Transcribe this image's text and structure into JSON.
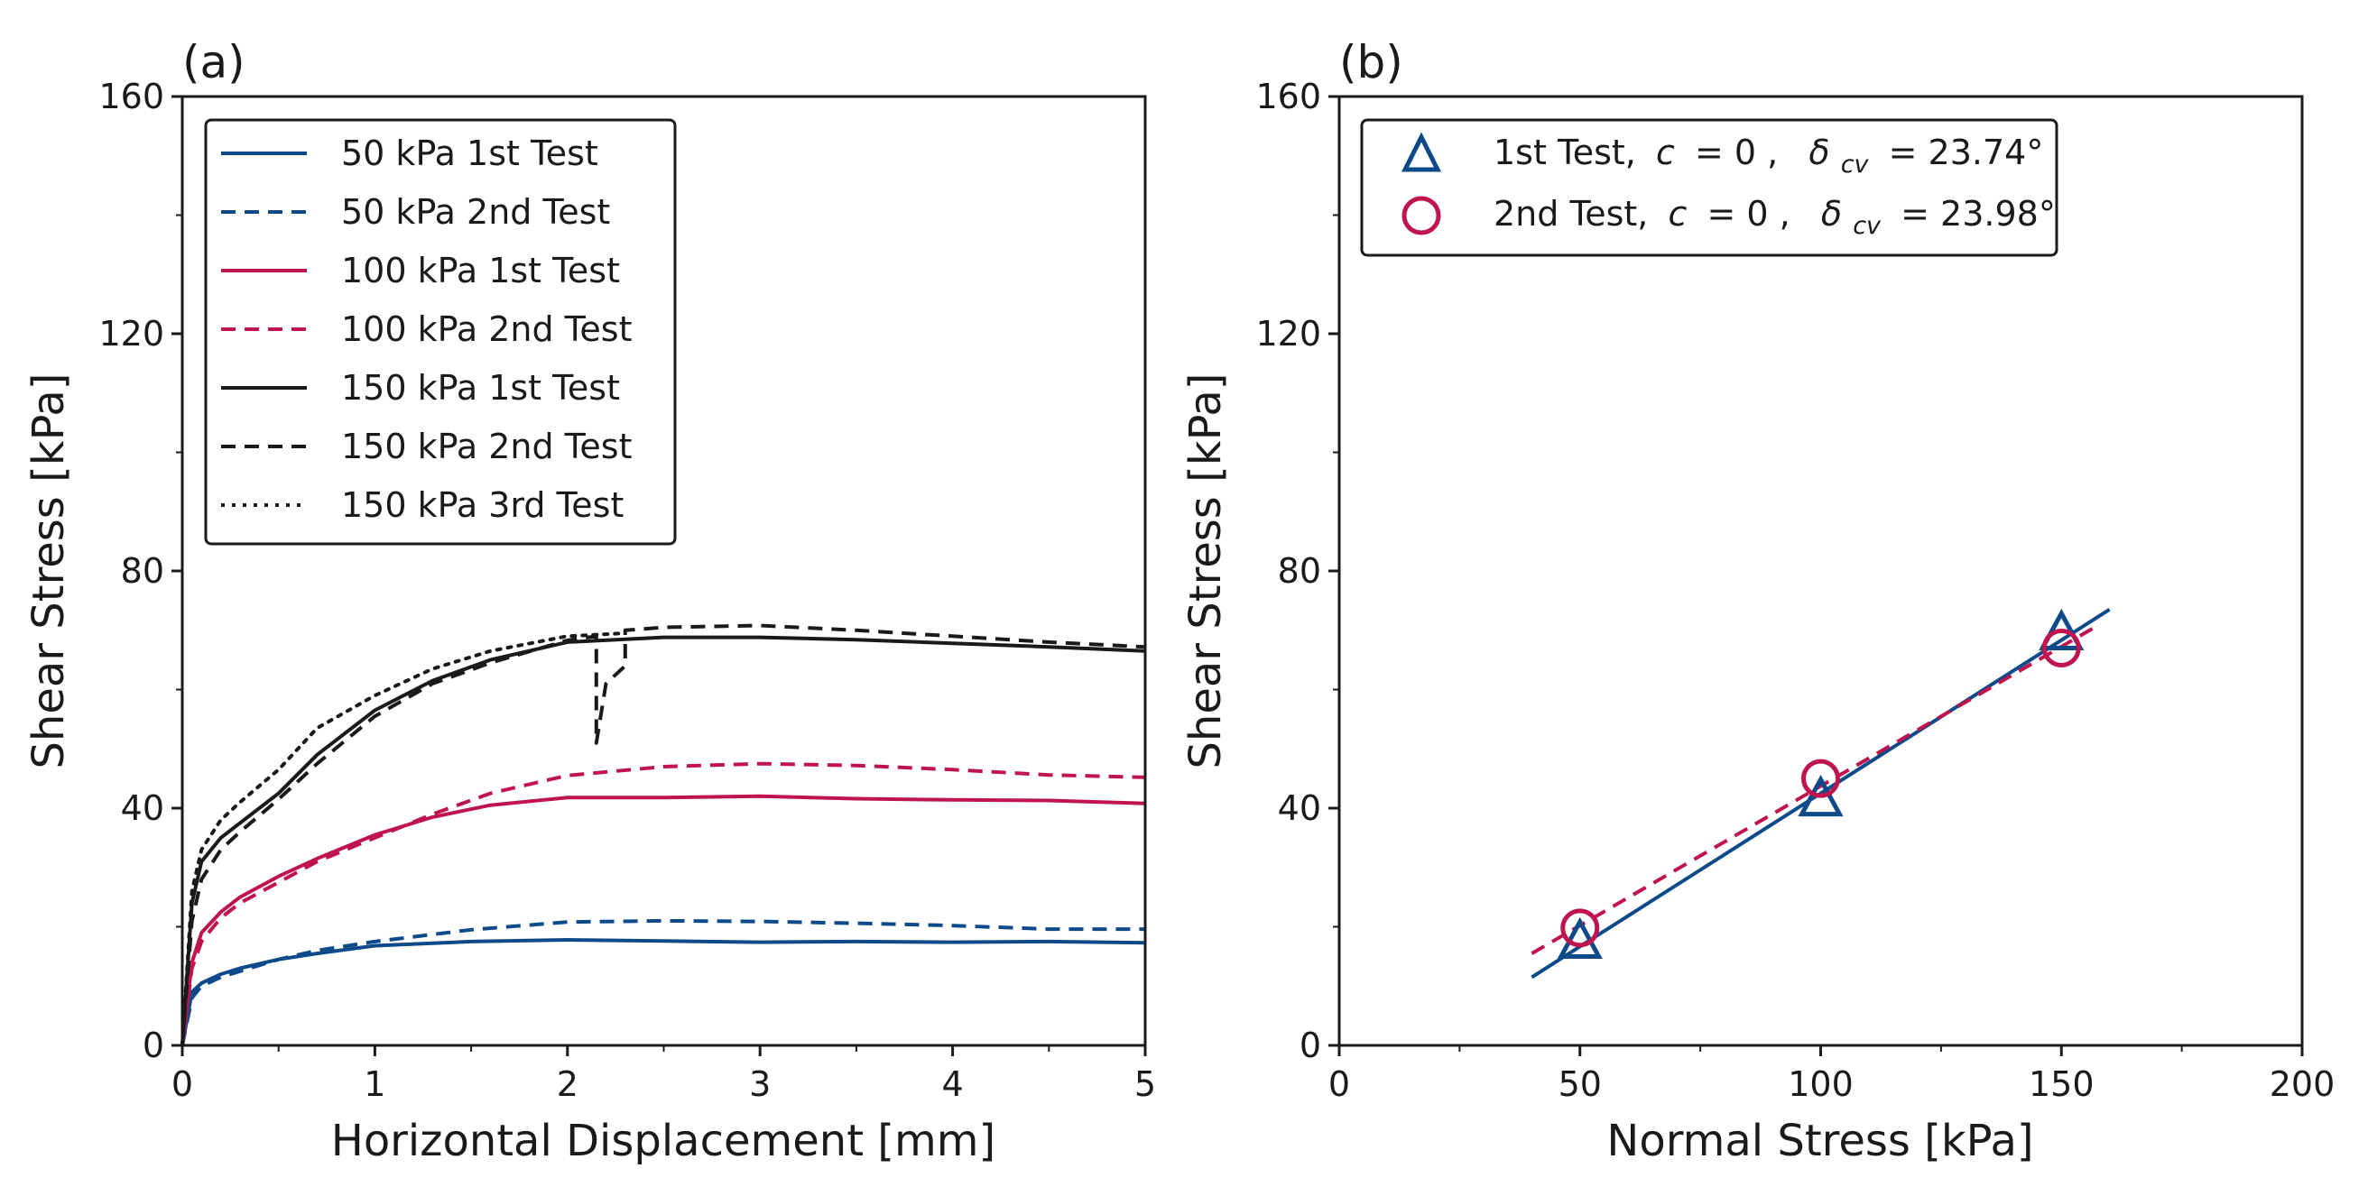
{
  "colors": {
    "blue": "#0d4a8a",
    "crimson": "#c0144f",
    "black": "#1a1a1a"
  },
  "chart_data": [
    {
      "panel_label": "(a)",
      "type": "line",
      "title": "",
      "xlabel": "Horizontal Displacement [mm]",
      "ylabel": "Shear Stress [kPa]",
      "xlim": [
        0,
        5
      ],
      "ylim": [
        0,
        160
      ],
      "xticks": [
        "0",
        "1",
        "2",
        "3",
        "4",
        "5"
      ],
      "yticks": [
        "0",
        "40",
        "80",
        "120",
        "160"
      ],
      "grid": false,
      "legend_position": "top-left",
      "series": [
        {
          "name": "50 kPa 1st Test",
          "color": "blue",
          "style": "solid",
          "x": [
            0,
            0.05,
            0.1,
            0.2,
            0.3,
            0.5,
            0.7,
            1.0,
            1.5,
            2.0,
            2.5,
            3.0,
            3.5,
            4.0,
            4.5,
            5.0
          ],
          "y": [
            0,
            9,
            10.5,
            12,
            13,
            14.5,
            15.5,
            16.8,
            17.5,
            17.8,
            17.6,
            17.4,
            17.5,
            17.4,
            17.5,
            17.3
          ]
        },
        {
          "name": "50 kPa 2nd Test",
          "color": "blue",
          "style": "dashed",
          "x": [
            0,
            0.05,
            0.1,
            0.2,
            0.3,
            0.5,
            0.7,
            1.0,
            1.5,
            2.0,
            2.5,
            3.0,
            3.5,
            4.0,
            4.5,
            5.0
          ],
          "y": [
            0,
            8,
            10,
            11.5,
            12.5,
            14.5,
            16,
            17.5,
            19.5,
            20.8,
            21,
            20.9,
            20.6,
            20.2,
            19.6,
            19.6
          ]
        },
        {
          "name": "100 kPa 1st Test",
          "color": "crimson",
          "style": "solid",
          "x": [
            0,
            0.05,
            0.1,
            0.2,
            0.3,
            0.5,
            0.7,
            1.0,
            1.3,
            1.6,
            2.0,
            2.5,
            3.0,
            3.5,
            4.0,
            4.5,
            5.0
          ],
          "y": [
            0,
            14,
            19,
            22.5,
            25,
            28.5,
            31.5,
            35.5,
            38.5,
            40.5,
            41.8,
            41.8,
            42,
            41.6,
            41.4,
            41.3,
            40.8
          ]
        },
        {
          "name": "100 kPa 2nd Test",
          "color": "crimson",
          "style": "dashed",
          "x": [
            0,
            0.05,
            0.1,
            0.2,
            0.3,
            0.5,
            0.7,
            1.0,
            1.3,
            1.6,
            2.0,
            2.5,
            3.0,
            3.5,
            4.0,
            4.5,
            5.0
          ],
          "y": [
            0,
            13,
            17.5,
            21.5,
            24,
            27.5,
            31,
            35,
            39,
            42.5,
            45.5,
            47,
            47.5,
            47.2,
            46.5,
            45.6,
            45.2
          ]
        },
        {
          "name": "150 kPa 1st Test",
          "color": "black",
          "style": "solid",
          "x": [
            0,
            0.05,
            0.1,
            0.2,
            0.3,
            0.5,
            0.7,
            1.0,
            1.3,
            1.6,
            2.0,
            2.5,
            3.0,
            3.5,
            4.0,
            4.5,
            5.0
          ],
          "y": [
            0,
            24,
            31,
            35,
            37.5,
            42.5,
            49,
            56.5,
            61.5,
            65,
            68,
            68.8,
            68.8,
            68.4,
            67.8,
            67.2,
            66.5
          ]
        },
        {
          "name": "150 kPa 2nd Test",
          "color": "black",
          "style": "dashed",
          "x": [
            0,
            0.05,
            0.1,
            0.2,
            0.3,
            0.5,
            0.7,
            1.0,
            1.3,
            1.6,
            2.0,
            2.15,
            2.15,
            2.2,
            2.3,
            2.3,
            2.5,
            3.0,
            3.5,
            4.0,
            4.5,
            5.0
          ],
          "y": [
            0,
            21,
            28,
            33,
            36,
            41.5,
            47.5,
            55.5,
            61,
            64.5,
            68.3,
            69,
            51,
            61,
            64,
            70,
            70.5,
            70.8,
            70,
            69,
            68,
            67.2
          ]
        },
        {
          "name": "150 kPa 3rd Test",
          "color": "black",
          "style": "dotted",
          "x": [
            0,
            0.05,
            0.1,
            0.2,
            0.3,
            0.5,
            0.7,
            1.0,
            1.3,
            1.6,
            2.0,
            2.3
          ],
          "y": [
            0,
            26,
            33,
            38,
            41,
            46.5,
            53.5,
            59,
            63.5,
            66.5,
            69,
            69.5
          ]
        }
      ]
    },
    {
      "panel_label": "(b)",
      "type": "scatter",
      "title": "",
      "xlabel": "Normal Stress [kPa]",
      "ylabel": "Shear Stress [kPa]",
      "xlim": [
        0,
        200
      ],
      "ylim": [
        0,
        160
      ],
      "xticks": [
        "0",
        "50",
        "100",
        "150",
        "200"
      ],
      "yticks": [
        "0",
        "40",
        "80",
        "120",
        "160"
      ],
      "grid": false,
      "legend_position": "top-left",
      "series": [
        {
          "name": "1st Test",
          "legend_prefix": "1st Test,",
          "c_value": "0",
          "delta_value": "= 23.74°",
          "color": "blue",
          "marker": "triangle",
          "x": [
            50,
            100,
            150
          ],
          "y": [
            17.5,
            41.5,
            69.5
          ],
          "fit": {
            "style": "solid",
            "x": [
              40,
              160
            ],
            "y": [
              11.5,
              73.5
            ]
          }
        },
        {
          "name": "2nd Test",
          "legend_prefix": "2nd Test,",
          "c_value": "0",
          "delta_value": "= 23.98°",
          "color": "crimson",
          "marker": "circle",
          "x": [
            50,
            100,
            150
          ],
          "y": [
            19.8,
            45,
            67
          ],
          "fit": {
            "style": "dashed",
            "x": [
              40,
              158
            ],
            "y": [
              15.5,
              71
            ]
          }
        }
      ],
      "legend_c_symbol": "c",
      "legend_c_equals": "= ",
      "legend_delta_symbol": "δ",
      "legend_delta_subscript": "cv"
    }
  ]
}
